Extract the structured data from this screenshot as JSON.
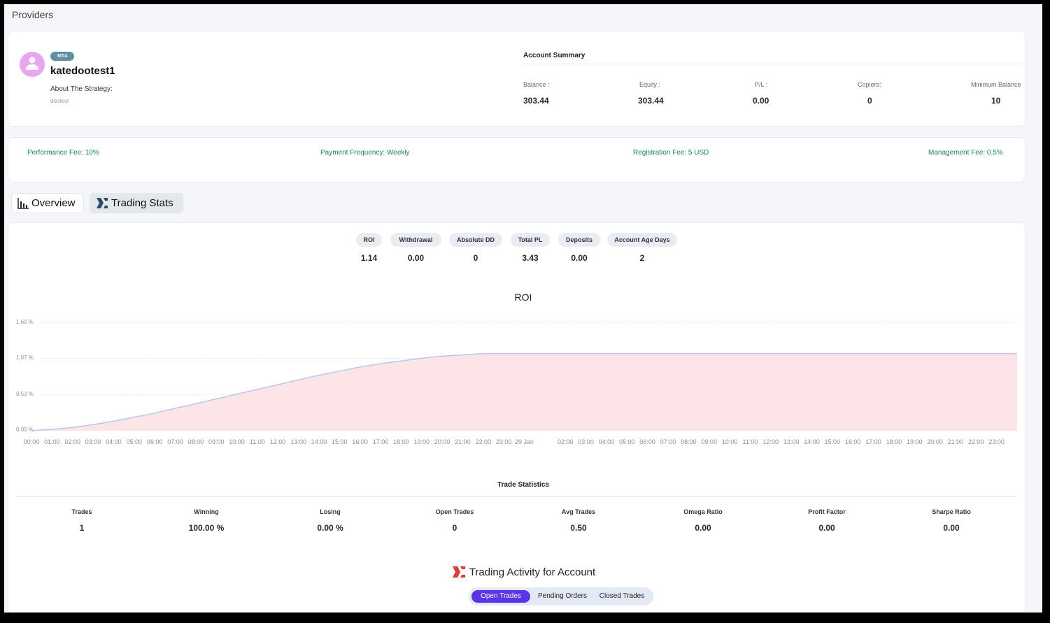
{
  "breadcrumb": "Providers",
  "provider": {
    "badge": "MT4",
    "name": "katedootest1",
    "about_label": "About The Strategy:",
    "about_value": "dootest"
  },
  "account_summary": {
    "title": "Account Summary",
    "items": [
      {
        "label": "Balance :",
        "value": "303.44"
      },
      {
        "label": "Equity :",
        "value": "303.44"
      },
      {
        "label": "P/L :",
        "value": "0.00"
      },
      {
        "label": "Copiers:",
        "value": "0"
      },
      {
        "label": "Minimum Balance",
        "value": "10"
      }
    ]
  },
  "fees": {
    "performance": "Performance Fee: 10%",
    "payment_frequency": "Payment Frequency: Weekly",
    "registration": "Registration Fee: 5 USD",
    "management": "Management Fee: 0.5%",
    "color": "#15885c"
  },
  "tabs": {
    "overview": "Overview",
    "trading_stats": "Trading Stats"
  },
  "metrics": [
    {
      "label": "ROI",
      "value": "1.14"
    },
    {
      "label": "Withdrawal",
      "value": "0.00"
    },
    {
      "label": "Absolute DD",
      "value": "0"
    },
    {
      "label": "Total PL",
      "value": "3.43"
    },
    {
      "label": "Deposits",
      "value": "0.00"
    },
    {
      "label": "Account Age Days",
      "value": "2"
    }
  ],
  "chart_data": {
    "type": "area",
    "title": "ROI",
    "y_ticks": [
      "1.60 %",
      "1.07 %",
      "0.53 %",
      "0.00 %"
    ],
    "ylim": [
      0,
      1.6
    ],
    "x_ticks": [
      "00:00",
      "01:00",
      "02:00",
      "03:00",
      "04:00",
      "05:00",
      "06:00",
      "07:00",
      "08:00",
      "09:00",
      "10:00",
      "11:00",
      "12:00",
      "13:00",
      "14:00",
      "15:00",
      "16:00",
      "17:00",
      "18:00",
      "19:00",
      "20:00",
      "21:00",
      "22:00",
      "23:00",
      "29 Jan",
      "02:00",
      "03:00",
      "04:00",
      "05:00",
      "06:00",
      "07:00",
      "08:00",
      "09:00",
      "10:00",
      "11:00",
      "12:00",
      "13:00",
      "14:00",
      "15:00",
      "16:00",
      "17:00",
      "18:00",
      "19:00",
      "20:00",
      "21:00",
      "22:00",
      "23:00"
    ],
    "x_hours": [
      0,
      1,
      2,
      3,
      4,
      5,
      6,
      7,
      8,
      9,
      10,
      11,
      12,
      13,
      14,
      15,
      16,
      17,
      18,
      19,
      20,
      21,
      22,
      23,
      24,
      26,
      27,
      28,
      29,
      30,
      31,
      32,
      33,
      34,
      35,
      36,
      37,
      38,
      39,
      40,
      41,
      42,
      43,
      44,
      45,
      46,
      47
    ],
    "series": [
      {
        "x": [
          0,
          1,
          2,
          3,
          4,
          5,
          6,
          7,
          8,
          9,
          10,
          11,
          12,
          13,
          14,
          15,
          16,
          17,
          18,
          19,
          20,
          21,
          22,
          23,
          48
        ],
        "values": [
          0,
          0.02,
          0.05,
          0.09,
          0.14,
          0.2,
          0.26,
          0.33,
          0.4,
          0.47,
          0.54,
          0.61,
          0.68,
          0.75,
          0.82,
          0.88,
          0.94,
          0.99,
          1.03,
          1.07,
          1.1,
          1.12,
          1.14,
          1.14,
          1.14
        ]
      }
    ],
    "line_color": "#b8c6ee",
    "fill_color": "#fde5e7",
    "grid": true
  },
  "trade_statistics": {
    "title": "Trade Statistics",
    "items": [
      {
        "label": "Trades",
        "value": "1"
      },
      {
        "label": "Winning",
        "value": "100.00 %"
      },
      {
        "label": "Losing",
        "value": "0.00 %"
      },
      {
        "label": "Open Trades",
        "value": "0"
      },
      {
        "label": "Avg Trades",
        "value": "0.50"
      },
      {
        "label": "Omega Ratio",
        "value": "0.00"
      },
      {
        "label": "Profit Factor",
        "value": "0.00"
      },
      {
        "label": "Sharpe Ratio",
        "value": "0.00"
      }
    ]
  },
  "activity": {
    "title": "Trading Activity for Account",
    "tabs": [
      "Open Trades",
      "Pending Orders",
      "Closed Trades"
    ],
    "active": "Open Trades",
    "accent": "#5b34e8"
  }
}
